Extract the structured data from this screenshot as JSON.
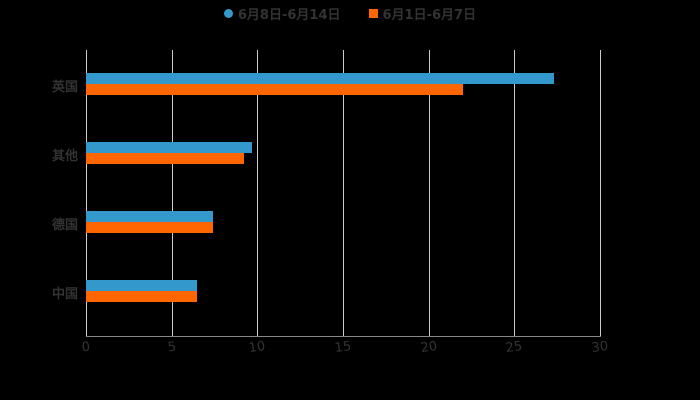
{
  "chart_data": {
    "type": "bar",
    "orientation": "horizontal",
    "title": "",
    "categories": [
      "英国",
      "其他",
      "德国",
      "中国"
    ],
    "series": [
      {
        "name": "6月8日-6月14日",
        "color": "#3399cc",
        "values": [
          27.3,
          9.7,
          7.4,
          6.5
        ]
      },
      {
        "name": "6月1日-6月7日",
        "color": "#ff6600",
        "values": [
          22.0,
          9.2,
          7.4,
          6.5
        ]
      }
    ],
    "xlabel": "",
    "ylabel": "",
    "xlim": [
      0,
      30
    ],
    "xticks": [
      "0",
      "5",
      "10",
      "15",
      "20",
      "25",
      "30"
    ],
    "grid": true,
    "legend_position": "top"
  },
  "legend": {
    "items": [
      {
        "label": "6月8日-6月14日",
        "color": "#3399cc",
        "marker": "circle"
      },
      {
        "label": "6月1日-6月7日",
        "color": "#ff6600",
        "marker": "square"
      }
    ]
  }
}
